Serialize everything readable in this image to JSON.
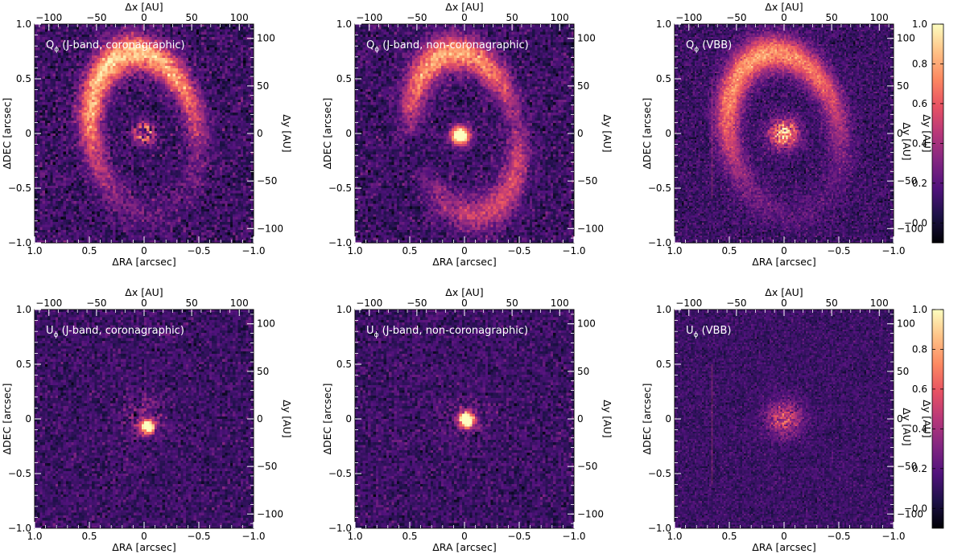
{
  "figure": {
    "colormap": [
      "#000004",
      "#1d1147",
      "#51127c",
      "#832681",
      "#b73779",
      "#e75263",
      "#fc8961",
      "#fec287",
      "#fcfdbf"
    ],
    "colorbar": {
      "range": [
        -0.1,
        1.0
      ],
      "ticks": [
        -0.0,
        0.2,
        0.4,
        0.6,
        0.8,
        1.0
      ],
      "tick_labels": [
        "−0.0",
        "0.2",
        "0.4",
        "0.6",
        "0.8",
        "1.0"
      ],
      "label": "Δy [AU]"
    }
  },
  "chart_data": [
    {
      "type": "heatmap",
      "title": "Q<sub>ϕ</sub> (J-band, coronagraphic)",
      "title_main": "Q",
      "title_sub": "ϕ",
      "title_rest": " (J-band, coronagraphic)",
      "xlabel": "ΔRA [arcsec]",
      "ylabel": "ΔDEC [arcsec]",
      "x2label": "Δx [AU]",
      "y2label": "Δy [AU]",
      "xlim": [
        1.0,
        -1.0
      ],
      "ylim": [
        -1.0,
        1.0
      ],
      "x2lim": [
        -115,
        115
      ],
      "y2lim": [
        -115,
        115
      ],
      "xticks": [
        1.0,
        0.5,
        0,
        -0.5,
        -1.0
      ],
      "xtick_labels": [
        "1.0",
        "0.5",
        "0",
        "−0.5",
        "−1.0"
      ],
      "yticks": [
        -1.0,
        -0.5,
        0,
        0.5,
        1.0
      ],
      "ytick_labels": [
        "−1.0",
        "−0.5",
        "0",
        "0.5",
        "1.0"
      ],
      "x2ticks": [
        -100,
        -50,
        0,
        50,
        100
      ],
      "x2tick_labels": [
        "−100",
        "−50",
        "0",
        "50",
        "100"
      ],
      "y2ticks": [
        -100,
        -50,
        0,
        50,
        100
      ],
      "y2tick_labels": [
        "−100",
        "−50",
        "0",
        "50",
        "100"
      ],
      "intensity_model": {
        "components": [
          "elliptical ring ~0.45 arcsec, brighter to north and east",
          "bright central residual with dark masked core"
        ],
        "ring_peak": 0.75,
        "center_peak": 1.0
      }
    },
    {
      "type": "heatmap",
      "title_main": "Q",
      "title_sub": "ϕ",
      "title_rest": " (J-band, non-coronagraphic)",
      "xlabel": "ΔRA [arcsec]",
      "ylabel": "ΔDEC [arcsec]",
      "x2label": "Δx [AU]",
      "y2label": "Δy [AU]",
      "xlim": [
        1.0,
        -1.0
      ],
      "ylim": [
        -1.0,
        1.0
      ],
      "x2lim": [
        -115,
        115
      ],
      "y2lim": [
        -115,
        115
      ],
      "xticks": [
        1.0,
        0.5,
        0,
        -0.5,
        -1.0
      ],
      "xtick_labels": [
        "1.0",
        "0.5",
        "0",
        "−0.5",
        "−1.0"
      ],
      "yticks": [
        -1.0,
        -0.5,
        0,
        0.5,
        1.0
      ],
      "ytick_labels": [
        "−1.0",
        "−0.5",
        "0",
        "0.5",
        "1.0"
      ],
      "x2ticks": [
        -100,
        -50,
        0,
        50,
        100
      ],
      "x2tick_labels": [
        "−100",
        "−50",
        "0",
        "50",
        "100"
      ],
      "y2ticks": [
        -100,
        -50,
        0,
        50,
        100
      ],
      "y2tick_labels": [
        "−100",
        "−50",
        "0",
        "50",
        "100"
      ],
      "intensity_model": {
        "components": [
          "arc along north and east ~0.45 arcsec",
          "saturated central blob"
        ],
        "ring_peak": 0.7,
        "center_peak": 1.0
      }
    },
    {
      "type": "heatmap",
      "title_main": "Q",
      "title_sub": "ϕ",
      "title_rest": " (VBB)",
      "xlabel": "ΔRA [arcsec]",
      "ylabel": "ΔDEC [arcsec]",
      "x2label": "Δx [AU]",
      "y2label": "Δy [AU]",
      "xlim": [
        1.0,
        -1.0
      ],
      "ylim": [
        -1.0,
        1.0
      ],
      "x2lim": [
        -115,
        115
      ],
      "y2lim": [
        -115,
        115
      ],
      "xticks": [
        1.0,
        0.5,
        0,
        -0.5,
        -1.0
      ],
      "xtick_labels": [
        "1.0",
        "0.5",
        "0",
        "−0.5",
        "−1.0"
      ],
      "yticks": [
        -1.0,
        -0.5,
        0,
        0.5,
        1.0
      ],
      "ytick_labels": [
        "−1.0",
        "−0.5",
        "0",
        "0.5",
        "1.0"
      ],
      "x2ticks": [
        -100,
        -50,
        0,
        50,
        100
      ],
      "x2tick_labels": [
        "−100",
        "−50",
        "0",
        "50",
        "100"
      ],
      "y2ticks": [
        -100,
        -50,
        0,
        50,
        100
      ],
      "y2tick_labels": [
        "−100",
        "−50",
        "0",
        "50",
        "100"
      ],
      "intensity_model": {
        "components": [
          "broad crescent to north and east",
          "diffuse central glow"
        ],
        "ring_peak": 0.6,
        "center_peak": 0.9
      }
    },
    {
      "type": "heatmap",
      "title_main": "U",
      "title_sub": "ϕ",
      "title_rest": " (J-band, coronagraphic)",
      "xlabel": "ΔRA [arcsec]",
      "ylabel": "ΔDEC [arcsec]",
      "x2label": "Δx [AU]",
      "y2label": "Δy [AU]",
      "xlim": [
        1.0,
        -1.0
      ],
      "ylim": [
        -1.0,
        1.0
      ],
      "x2lim": [
        -115,
        115
      ],
      "y2lim": [
        -115,
        115
      ],
      "xticks": [
        1.0,
        0.5,
        0,
        -0.5,
        -1.0
      ],
      "xtick_labels": [
        "1.0",
        "0.5",
        "0",
        "−0.5",
        "−1.0"
      ],
      "yticks": [
        -1.0,
        -0.5,
        0,
        0.5,
        1.0
      ],
      "ytick_labels": [
        "−1.0",
        "−0.5",
        "0",
        "0.5",
        "1.0"
      ],
      "x2ticks": [
        -100,
        -50,
        0,
        50,
        100
      ],
      "x2tick_labels": [
        "−100",
        "−50",
        "0",
        "50",
        "100"
      ],
      "y2ticks": [
        -100,
        -50,
        0,
        50,
        100
      ],
      "y2tick_labels": [
        "−100",
        "−50",
        "0",
        "50",
        "100"
      ],
      "intensity_model": {
        "components": [
          "noise-dominated",
          "compact central residual"
        ],
        "ring_peak": 0.12,
        "center_peak": 0.9
      }
    },
    {
      "type": "heatmap",
      "title_main": "U",
      "title_sub": "ϕ",
      "title_rest": " (J-band, non-coronagraphic)",
      "xlabel": "ΔRA [arcsec]",
      "ylabel": "ΔDEC [arcsec]",
      "x2label": "Δx [AU]",
      "y2label": "Δy [AU]",
      "xlim": [
        1.0,
        -1.0
      ],
      "ylim": [
        -1.0,
        1.0
      ],
      "x2lim": [
        -115,
        115
      ],
      "y2lim": [
        -115,
        115
      ],
      "xticks": [
        1.0,
        0.5,
        0,
        -0.5,
        -1.0
      ],
      "xtick_labels": [
        "1.0",
        "0.5",
        "0",
        "−0.5",
        "−1.0"
      ],
      "yticks": [
        -1.0,
        -0.5,
        0,
        0.5,
        1.0
      ],
      "ytick_labels": [
        "−1.0",
        "−0.5",
        "0",
        "0.5",
        "1.0"
      ],
      "x2ticks": [
        -100,
        -50,
        0,
        50,
        100
      ],
      "x2tick_labels": [
        "−100",
        "−50",
        "0",
        "50",
        "100"
      ],
      "y2ticks": [
        -100,
        -50,
        0,
        50,
        100
      ],
      "y2tick_labels": [
        "−100",
        "−50",
        "0",
        "50",
        "100"
      ],
      "intensity_model": {
        "components": [
          "noise-dominated",
          "saturated central blob"
        ],
        "ring_peak": 0.1,
        "center_peak": 1.0
      }
    },
    {
      "type": "heatmap",
      "title_main": "U",
      "title_sub": "ϕ",
      "title_rest": " (VBB)",
      "xlabel": "ΔRA [arcsec]",
      "ylabel": "ΔDEC [arcsec]",
      "x2label": "Δx [AU]",
      "y2label": "Δy [AU]",
      "xlim": [
        1.0,
        -1.0
      ],
      "ylim": [
        -1.0,
        1.0
      ],
      "x2lim": [
        -115,
        115
      ],
      "y2lim": [
        -115,
        115
      ],
      "xticks": [
        1.0,
        0.5,
        0,
        -0.5,
        -1.0
      ],
      "xtick_labels": [
        "1.0",
        "0.5",
        "0",
        "−0.5",
        "−1.0"
      ],
      "yticks": [
        -1.0,
        -0.5,
        0,
        0.5,
        1.0
      ],
      "ytick_labels": [
        "−1.0",
        "−0.5",
        "0",
        "0.5",
        "1.0"
      ],
      "x2ticks": [
        -100,
        -50,
        0,
        50,
        100
      ],
      "x2tick_labels": [
        "−100",
        "−50",
        "0",
        "50",
        "100"
      ],
      "y2ticks": [
        -100,
        -50,
        0,
        50,
        100
      ],
      "y2tick_labels": [
        "−100",
        "−50",
        "0",
        "50",
        "100"
      ],
      "intensity_model": {
        "components": [
          "faint noise",
          "diffuse central glow"
        ],
        "ring_peak": 0.08,
        "center_peak": 0.6
      }
    }
  ]
}
